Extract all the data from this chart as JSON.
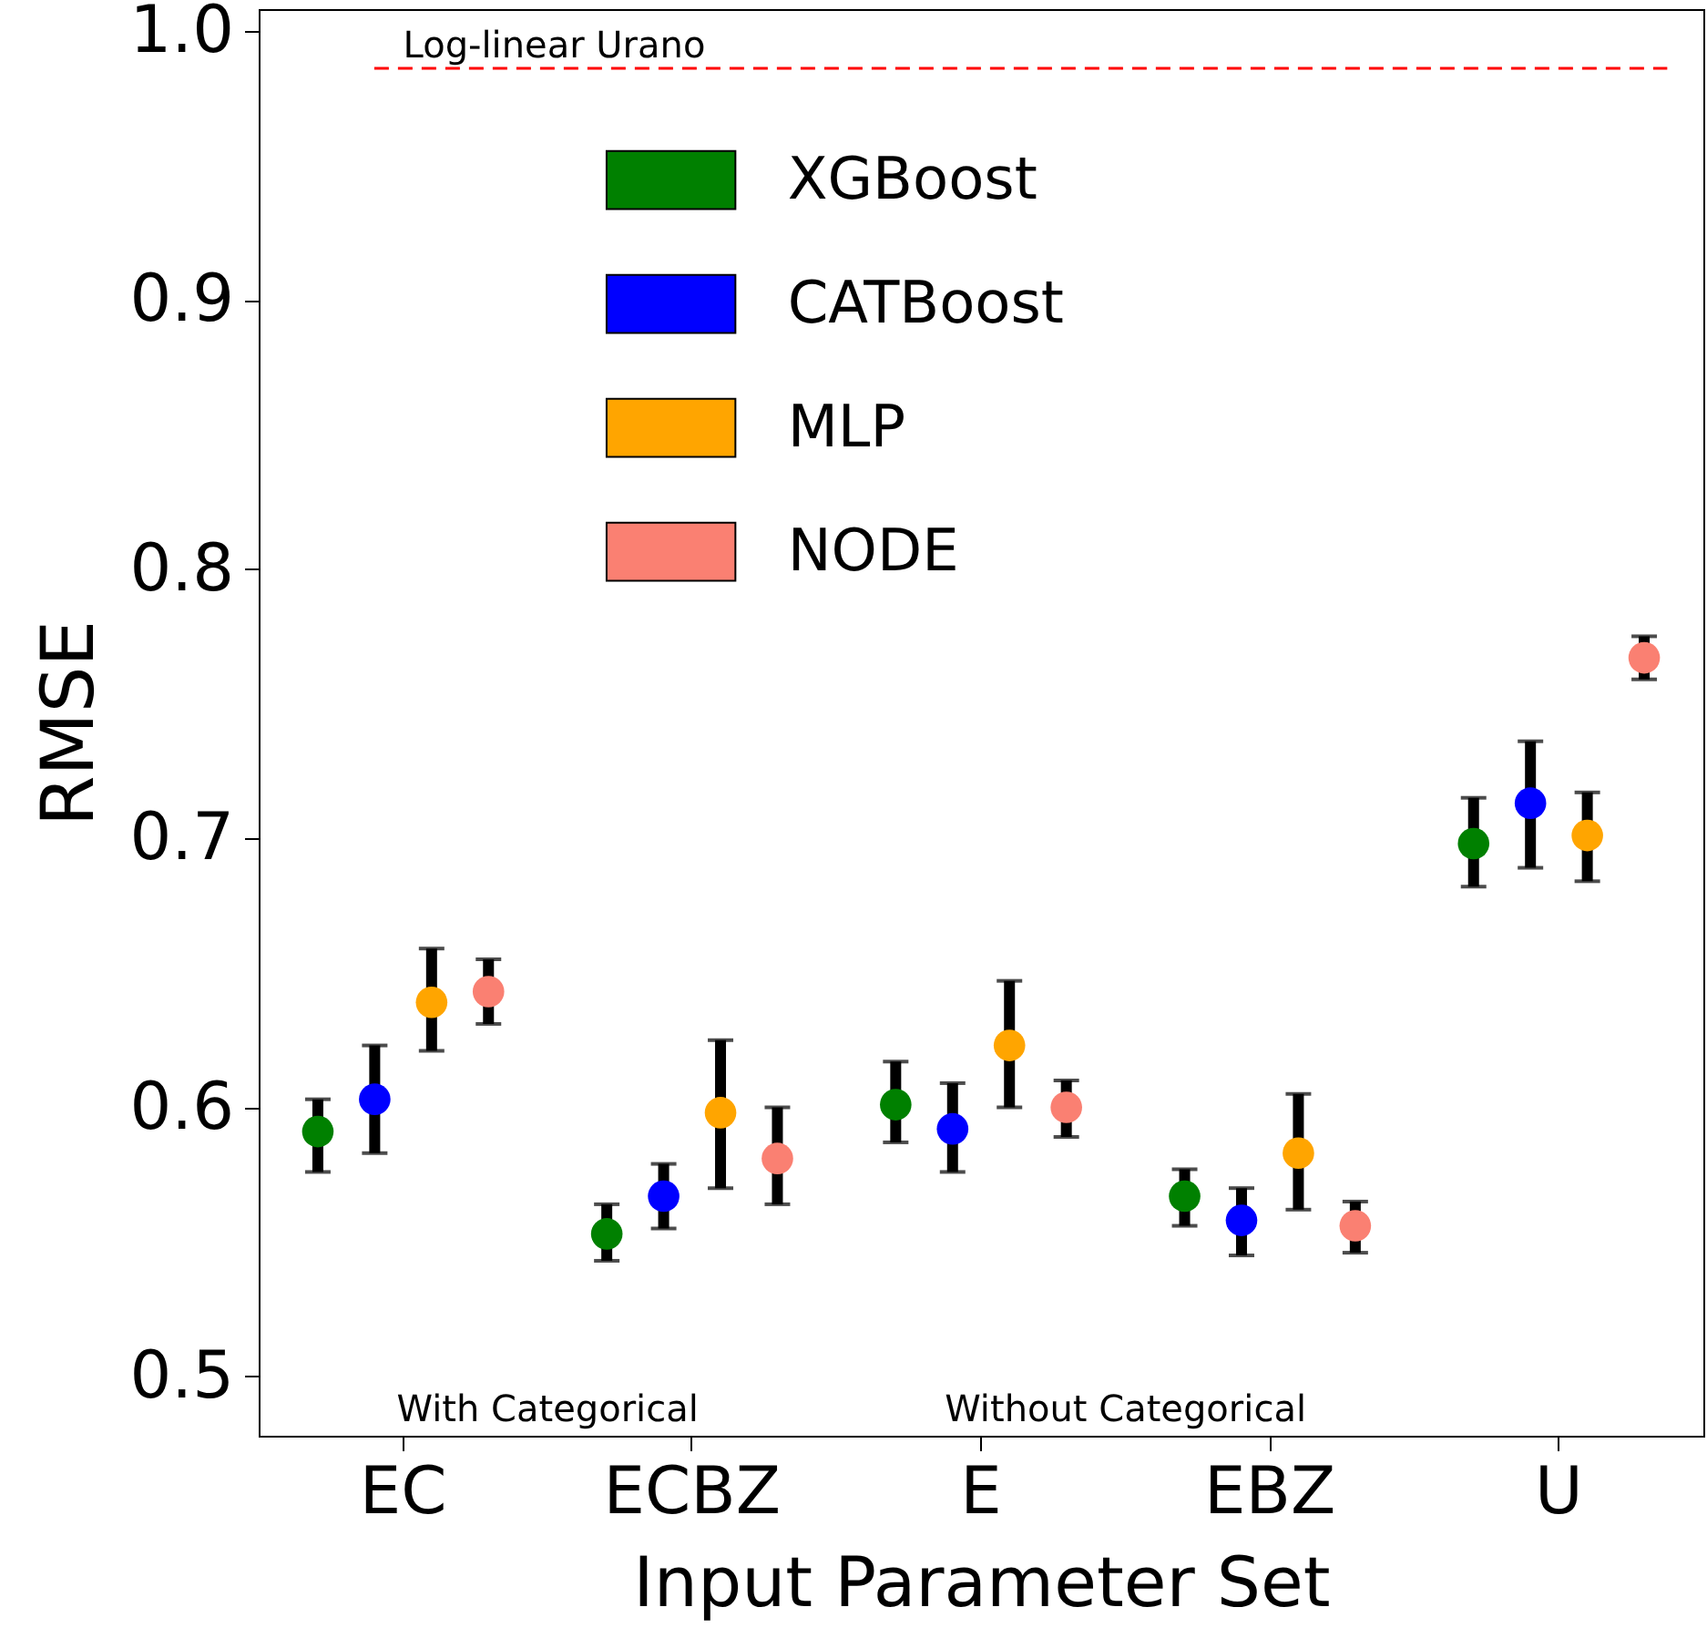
{
  "chart_data": {
    "type": "scatter",
    "xlabel": "Input Parameter Set",
    "ylabel": "RMSE",
    "categories": [
      "EC",
      "ECBZ",
      "E",
      "EBZ",
      "U"
    ],
    "series": [
      {
        "name": "XGBoost",
        "color": "#008000",
        "values": [
          0.591,
          0.553,
          0.601,
          0.567,
          0.698
        ],
        "errors": [
          [
            0.576,
            0.603
          ],
          [
            0.543,
            0.564
          ],
          [
            0.587,
            0.617
          ],
          [
            0.556,
            0.577
          ],
          [
            0.682,
            0.715
          ]
        ]
      },
      {
        "name": "CATBoost",
        "color": "#0000ff",
        "values": [
          0.603,
          0.567,
          0.592,
          0.558,
          0.713
        ],
        "errors": [
          [
            0.583,
            0.623
          ],
          [
            0.555,
            0.579
          ],
          [
            0.576,
            0.609
          ],
          [
            0.545,
            0.57
          ],
          [
            0.689,
            0.736
          ]
        ]
      },
      {
        "name": "MLP",
        "color": "#ffa500",
        "values": [
          0.639,
          0.598,
          0.623,
          0.583,
          0.701
        ],
        "errors": [
          [
            0.621,
            0.659
          ],
          [
            0.57,
            0.625
          ],
          [
            0.6,
            0.647
          ],
          [
            0.562,
            0.605
          ],
          [
            0.684,
            0.717
          ]
        ]
      },
      {
        "name": "NODE",
        "color": "#fa8072",
        "values": [
          0.643,
          0.581,
          0.6,
          0.556,
          0.767
        ],
        "errors": [
          [
            0.631,
            0.655
          ],
          [
            0.564,
            0.6
          ],
          [
            0.589,
            0.61
          ],
          [
            0.546,
            0.565
          ],
          [
            0.759,
            0.775
          ]
        ]
      }
    ],
    "ylim": [
      0.478,
      1.008
    ],
    "yticks": [
      0.5,
      0.6,
      0.7,
      0.8,
      0.9,
      {
        "value": 1,
        "label": "1.0"
      }
    ],
    "ref_lines": [
      {
        "axis": "y",
        "value": 0.986,
        "label": "Log-linear Urano",
        "color": "#ff0000",
        "line_style": "dashed"
      }
    ],
    "annotations": [
      "With Categorical",
      "Without Categorical"
    ],
    "marker": "circle",
    "legend": "top",
    "grid": false
  }
}
